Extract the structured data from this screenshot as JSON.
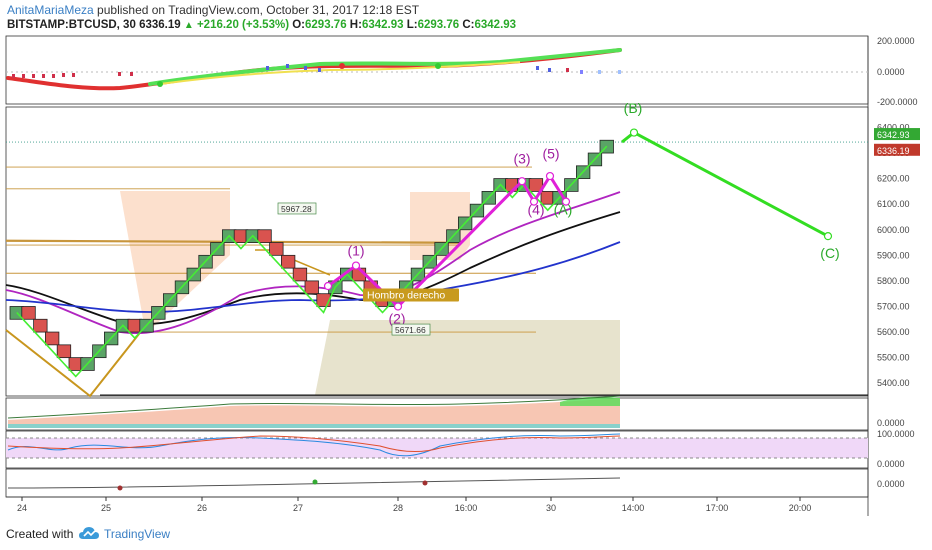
{
  "header": {
    "author": "AnitaMariaMeza",
    "published_text": "published on TradingView.com, October 31, 2017 12:18 EST",
    "symbol": "BITSTAMP:BTCUSD, 30",
    "last": "6336.19",
    "change": "+216.20 (+3.53%)",
    "o_label": "O:",
    "o_value": "6293.76",
    "h_label": "H:",
    "h_value": "6342.93",
    "l_label": "L:",
    "l_value": "6293.76",
    "c_label": "C:",
    "c_value": "6342.93"
  },
  "footer": {
    "created_with": "Created with",
    "brand": "TradingView"
  },
  "colors": {
    "up_brick": "#5aa466",
    "down_brick": "#d9534f",
    "ma_black": "#111111",
    "ma_purple": "#b025c0",
    "ma_blue": "#2233cc",
    "wave_green": "#33dd22",
    "wave_magenta": "#e020d8",
    "label_purple": "#a020a0",
    "label_green": "#2aa92a",
    "shade_orange": "#fbd8c0",
    "shade_olive": "#e4e0c8",
    "level_line": "#c8963c"
  },
  "chart_data": {
    "type": "renko",
    "symbol": "BITSTAMP:BTCUSD",
    "interval": "30",
    "last_price": 6336.19,
    "close_price": 6342.93,
    "price_axis": {
      "min": 5350,
      "max": 6480,
      "ticks": [
        "6400.00",
        "6300.00",
        "6200.00",
        "6100.00",
        "6000.00",
        "5900.00",
        "5800.00",
        "5700.00",
        "5600.00",
        "5500.00",
        "5400.00"
      ],
      "price_tags": [
        "6342.93",
        "6336.19"
      ]
    },
    "time_axis": {
      "labels": [
        "24",
        "25",
        "26",
        "27",
        "28",
        "16:00",
        "30",
        "14:00",
        "17:00",
        "20:00"
      ]
    },
    "bricks": [
      {
        "dir": "up",
        "p": 5700
      },
      {
        "dir": "down",
        "p": 5650
      },
      {
        "dir": "down",
        "p": 5600
      },
      {
        "dir": "down",
        "p": 5550
      },
      {
        "dir": "down",
        "p": 5500
      },
      {
        "dir": "down",
        "p": 5450
      },
      {
        "dir": "up",
        "p": 5500
      },
      {
        "dir": "up",
        "p": 5550
      },
      {
        "dir": "up",
        "p": 5600
      },
      {
        "dir": "up",
        "p": 5650
      },
      {
        "dir": "down",
        "p": 5600
      },
      {
        "dir": "up",
        "p": 5650
      },
      {
        "dir": "up",
        "p": 5700
      },
      {
        "dir": "up",
        "p": 5750
      },
      {
        "dir": "up",
        "p": 5800
      },
      {
        "dir": "up",
        "p": 5850
      },
      {
        "dir": "up",
        "p": 5900
      },
      {
        "dir": "up",
        "p": 5950
      },
      {
        "dir": "up",
        "p": 6000
      },
      {
        "dir": "down",
        "p": 5950
      },
      {
        "dir": "up",
        "p": 6000
      },
      {
        "dir": "down",
        "p": 5950
      },
      {
        "dir": "down",
        "p": 5900
      },
      {
        "dir": "down",
        "p": 5850
      },
      {
        "dir": "down",
        "p": 5800
      },
      {
        "dir": "down",
        "p": 5750
      },
      {
        "dir": "down",
        "p": 5700
      },
      {
        "dir": "up",
        "p": 5800
      },
      {
        "dir": "up",
        "p": 5850
      },
      {
        "dir": "down",
        "p": 5800
      },
      {
        "dir": "down",
        "p": 5750
      },
      {
        "dir": "down",
        "p": 5700
      },
      {
        "dir": "up",
        "p": 5750
      },
      {
        "dir": "up",
        "p": 5800
      },
      {
        "dir": "up",
        "p": 5850
      },
      {
        "dir": "up",
        "p": 5900
      },
      {
        "dir": "up",
        "p": 5950
      },
      {
        "dir": "up",
        "p": 6000
      },
      {
        "dir": "up",
        "p": 6050
      },
      {
        "dir": "up",
        "p": 6100
      },
      {
        "dir": "up",
        "p": 6150
      },
      {
        "dir": "up",
        "p": 6200
      },
      {
        "dir": "down",
        "p": 6150
      },
      {
        "dir": "up",
        "p": 6200
      },
      {
        "dir": "down",
        "p": 6150
      },
      {
        "dir": "down",
        "p": 6100
      },
      {
        "dir": "up",
        "p": 6150
      },
      {
        "dir": "up",
        "p": 6200
      },
      {
        "dir": "up",
        "p": 6250
      },
      {
        "dir": "up",
        "p": 6300
      },
      {
        "dir": "up",
        "p": 6350
      }
    ],
    "annotations": {
      "wave_labels": [
        {
          "text": "(1)",
          "price": 5860,
          "color": "purple"
        },
        {
          "text": "(2)",
          "price": 5665,
          "color": "purple"
        },
        {
          "text": "(3)",
          "price": 6240,
          "color": "purple"
        },
        {
          "text": "(4)",
          "price": 6075,
          "color": "purple"
        },
        {
          "text": "(5)",
          "price": 6260,
          "color": "purple"
        },
        {
          "text": "(A)",
          "price": 6075,
          "color": "green"
        },
        {
          "text": "(B)",
          "price": 6440,
          "color": "green"
        },
        {
          "text": "(C)",
          "price": 5905,
          "color": "green"
        }
      ],
      "price_labels": [
        "5967.28",
        "5671.66"
      ],
      "text_label": "Hombro derecho"
    },
    "oscillator1_axis": [
      "200.0000",
      "0.0000",
      "-200.0000"
    ],
    "oscillator2_axis": [
      "0.0000"
    ],
    "oscillator3_axis": [
      "100.0000",
      "0.0000"
    ],
    "oscillator4_axis": [
      "0.0000"
    ]
  }
}
